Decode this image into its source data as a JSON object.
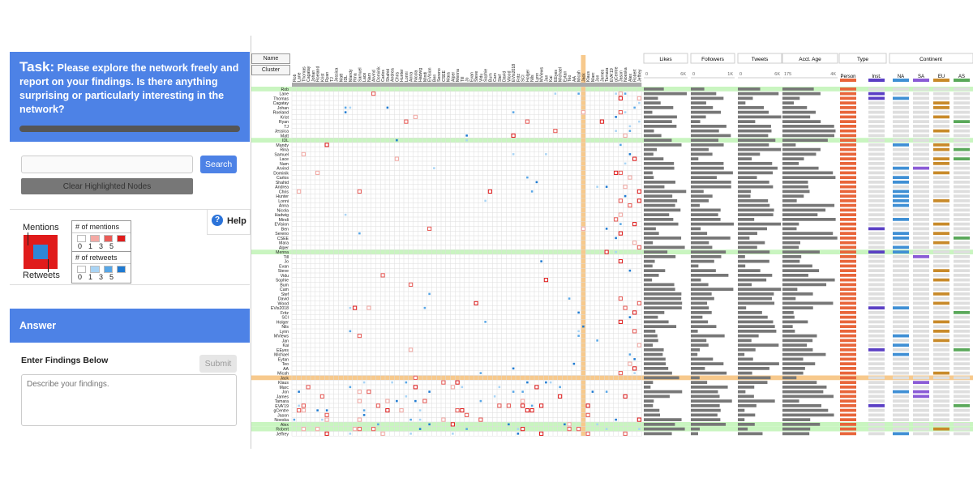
{
  "task": {
    "prefix": "Task:",
    "text": "Please explore the network freely and report on your findings. Is there anything surprising or particularly interesting in the network?"
  },
  "search": {
    "placeholder": "",
    "button": "Search",
    "clear": "Clear Highlighted Nodes"
  },
  "legend": {
    "mentions_label": "Mentions",
    "retweets_label": "Retweets",
    "mentions_title": "# of mentions",
    "retweets_title": "# of retweets",
    "scale": [
      "0",
      "1",
      "3",
      "5"
    ],
    "mention_colors": [
      "#ffffff",
      "#f4a9a4",
      "#ea5b57",
      "#e01b1b"
    ],
    "retweet_colors": [
      "#ffffff",
      "#a9d4f5",
      "#57a6e6",
      "#1f7ad1"
    ]
  },
  "help": "Help",
  "answer": {
    "title": "Answer",
    "label": "Enter Findings Below",
    "submit": "Submit",
    "placeholder": "Describe your findings."
  },
  "toolbar": {
    "name": "Name",
    "cluster": "Cluster"
  },
  "columns": {
    "likes": "Likes",
    "followers": "Followers",
    "tweets": "Tweets",
    "age": "Acct. Age",
    "type": "Type",
    "continent": "Continent",
    "likes_ticks": [
      "0",
      "6K"
    ],
    "followers_ticks": [
      "0",
      "1K"
    ],
    "tweets_ticks": [
      "0",
      "6K"
    ],
    "age_ticks": [
      "175",
      "4K"
    ],
    "type_label": "Person",
    "inst_label": "Inst.",
    "continents": [
      "NA",
      "SA",
      "EU",
      "AS"
    ]
  },
  "rows": [
    "Rob",
    "Lane",
    "Thomas",
    "Cagatay",
    "Johan",
    "Roeland",
    "Krist",
    "Ryan",
    "TJ",
    "Jessica",
    "Matt",
    "IDL",
    "Mandy",
    "Rina",
    "Samuel",
    "Lace",
    "Nam",
    "Arvind",
    "Dominik",
    "Carlos",
    "Shahid",
    "Andrea",
    "Chris",
    "Hunter",
    "Lonni",
    "Anna",
    "Nicola",
    "Hadwig",
    "Mindi",
    "EVision",
    "Ben",
    "Sereno",
    "CSEE",
    "Mara",
    "Alper",
    "Menna",
    "Till",
    "Jo",
    "Evan",
    "Steve",
    "Vidu",
    "Sophie",
    "Bum",
    "Cam",
    "Stef",
    "David",
    "Wood",
    "EVis2018",
    "Fritz",
    "SCI",
    "Holger",
    "Nils",
    "Lynn",
    "MViews",
    "Jan",
    "Kai",
    "EEyes",
    "Michael",
    "Eytan",
    "Teo",
    "AA",
    "Micah",
    "Jack",
    "Klaus",
    "Marc",
    "Jon",
    "James",
    "Tamara",
    "EVA'19",
    "gCentre",
    "Jason",
    "Noeska",
    "Alex",
    "Robert",
    "Jeffrey"
  ],
  "highlight_rows": [
    "Rob",
    "IDL",
    "Menna",
    "Alex",
    "Robert"
  ],
  "selected_row": "Jack",
  "selected_col": "Jack"
}
